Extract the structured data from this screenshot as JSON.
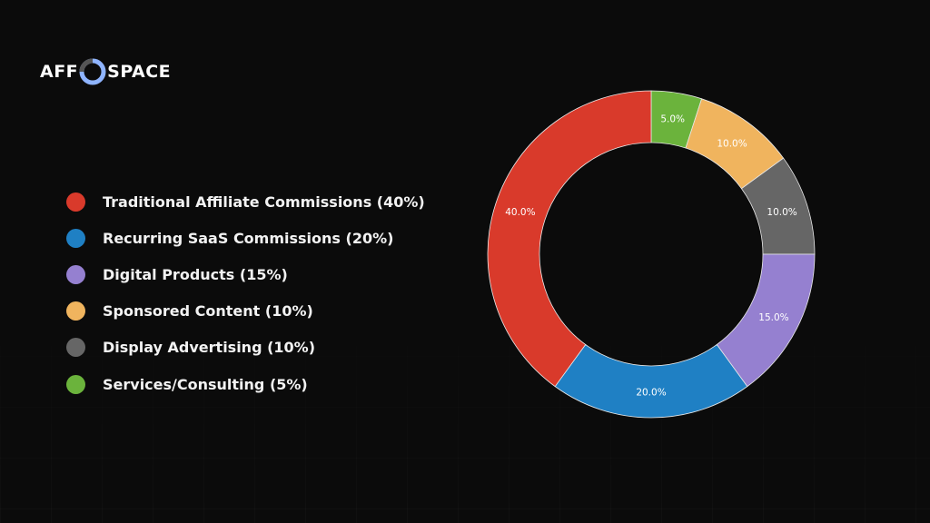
{
  "brand": {
    "left": "AFF",
    "right": "SPACE",
    "ring_colors": [
      "#8fb4ff",
      "#555555"
    ]
  },
  "chart_data": {
    "type": "pie",
    "donut": true,
    "start": "top",
    "direction": "clockwise",
    "legend_placement": "left",
    "slices": [
      {
        "legend": "Services/Consulting (5%)",
        "value": 5,
        "label": "5.0%",
        "color": "#6bb33c"
      },
      {
        "legend": "Sponsored Content (10%)",
        "value": 10,
        "label": "10.0%",
        "color": "#f0b45e"
      },
      {
        "legend": "Display Advertising (10%)",
        "value": 10,
        "label": "10.0%",
        "color": "#666666"
      },
      {
        "legend": "Digital Products (15%)",
        "value": 15,
        "label": "15.0%",
        "color": "#9580d0"
      },
      {
        "legend": "Recurring SaaS Commissions (20%)",
        "value": 20,
        "label": "20.0%",
        "color": "#1f80c4"
      },
      {
        "legend": "Traditional Affiliate Commissions (40%)",
        "value": 40,
        "label": "40.0%",
        "color": "#d93a2b"
      }
    ],
    "legend_order": [
      5,
      4,
      3,
      1,
      2,
      0
    ]
  }
}
